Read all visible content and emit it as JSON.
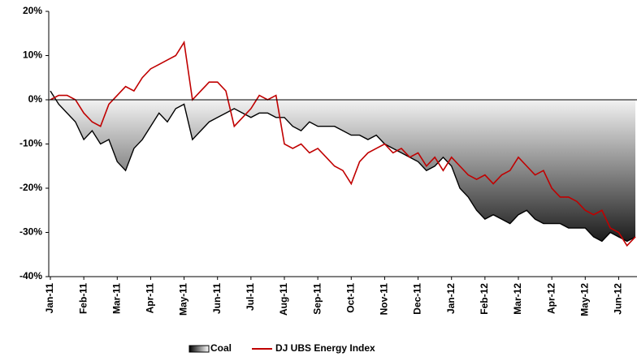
{
  "chart_data": {
    "type": "area_line",
    "categories": [
      "Jan-11",
      null,
      null,
      null,
      "Feb-11",
      null,
      null,
      null,
      "Mar-11",
      null,
      null,
      null,
      "Apr-11",
      null,
      null,
      null,
      "May-11",
      null,
      null,
      null,
      "Jun-11",
      null,
      null,
      null,
      "Jul-11",
      null,
      null,
      null,
      "Aug-11",
      null,
      null,
      null,
      "Sep-11",
      null,
      null,
      null,
      "Oct-11",
      null,
      null,
      null,
      "Nov-11",
      null,
      null,
      null,
      "Dec-11",
      null,
      null,
      null,
      "Jan-12",
      null,
      null,
      null,
      "Feb-12",
      null,
      null,
      null,
      "Mar-12",
      null,
      null,
      null,
      "Apr-12",
      null,
      null,
      null,
      "May-12",
      null,
      null,
      null,
      "Jun-12",
      null,
      null
    ],
    "series": [
      {
        "name": "Coal",
        "color": "#000000",
        "fill": "gradient",
        "values": [
          2,
          -1,
          -3,
          -5,
          -9,
          -7,
          -10,
          -9,
          -14,
          -16,
          -11,
          -9,
          -6,
          -3,
          -5,
          -2,
          -1,
          -9,
          -7,
          -5,
          -4,
          -3,
          -2,
          -3,
          -4,
          -3,
          -3,
          -4,
          -4,
          -6,
          -7,
          -5,
          -6,
          -6,
          -6,
          -7,
          -8,
          -8,
          -9,
          -8,
          -10,
          -11,
          -12,
          -13,
          -14,
          -16,
          -15,
          -13,
          -15,
          -20,
          -22,
          -25,
          -27,
          -26,
          -27,
          -28,
          -26,
          -25,
          -27,
          -28,
          -28,
          -28,
          -29,
          -29,
          -29,
          -31,
          -32,
          -30,
          -31,
          -32,
          -31
        ]
      },
      {
        "name": "DJ UBS Energy Index",
        "color": "#c00000",
        "values": [
          0,
          1,
          1,
          0,
          -3,
          -5,
          -6,
          -1,
          1,
          3,
          2,
          5,
          7,
          8,
          9,
          10,
          13,
          0,
          2,
          4,
          4,
          2,
          -6,
          -4,
          -2,
          1,
          0,
          1,
          -10,
          -11,
          -10,
          -12,
          -11,
          -13,
          -15,
          -16,
          -19,
          -14,
          -12,
          -11,
          -10,
          -12,
          -11,
          -13,
          -12,
          -15,
          -13,
          -16,
          -13,
          -15,
          -17,
          -18,
          -17,
          -19,
          -17,
          -16,
          -13,
          -15,
          -17,
          -16,
          -20,
          -22,
          -22,
          -23,
          -25,
          -26,
          -25,
          -29,
          -30,
          -33,
          -31
        ]
      }
    ],
    "ylim": [
      -40,
      20
    ],
    "yticks": [
      {
        "value": -40,
        "label": "-40%"
      },
      {
        "value": -30,
        "label": "-30%"
      },
      {
        "value": -20,
        "label": "-20%"
      },
      {
        "value": -10,
        "label": "-10%"
      },
      {
        "value": 0,
        "label": "0%"
      },
      {
        "value": 10,
        "label": "10%"
      },
      {
        "value": 20,
        "label": "20%"
      }
    ],
    "grid": false,
    "legend": "bottom"
  }
}
